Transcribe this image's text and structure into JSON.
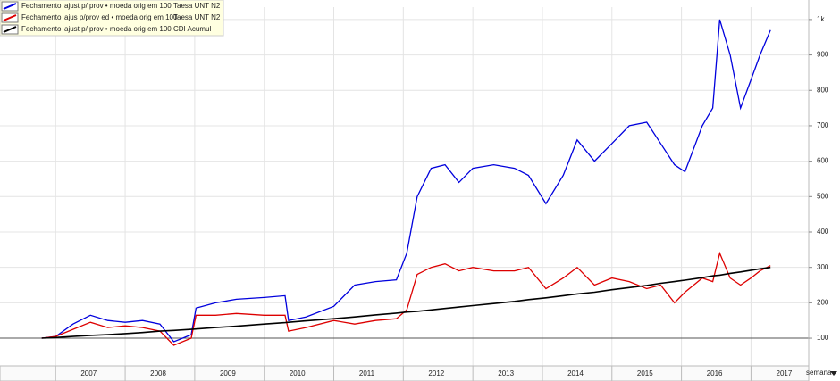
{
  "chart_data": {
    "type": "line",
    "x": [
      2006.8,
      2007.0,
      2007.25,
      2007.5,
      2007.75,
      2008.0,
      2008.25,
      2008.5,
      2008.7,
      2008.95,
      2009.02,
      2009.3,
      2009.6,
      2010.0,
      2010.3,
      2010.35,
      2010.6,
      2011.0,
      2011.3,
      2011.6,
      2011.9,
      2012.05,
      2012.2,
      2012.4,
      2012.6,
      2012.8,
      2013.0,
      2013.3,
      2013.6,
      2013.8,
      2014.05,
      2014.3,
      2014.5,
      2014.75,
      2015.0,
      2015.25,
      2015.5,
      2015.7,
      2015.9,
      2016.05,
      2016.3,
      2016.45,
      2016.55,
      2016.7,
      2016.85,
      2017.0,
      2017.13,
      2017.28
    ],
    "series": [
      {
        "name": "Taesa UNT N2",
        "measure": "Fechamento",
        "adjustment": "ajust p/ prov • moeda orig em 100",
        "color": "#0000dd",
        "values": [
          100,
          105,
          140,
          165,
          150,
          145,
          150,
          140,
          90,
          110,
          185,
          200,
          210,
          215,
          220,
          150,
          160,
          190,
          250,
          260,
          265,
          340,
          500,
          580,
          590,
          540,
          580,
          590,
          580,
          560,
          480,
          560,
          660,
          600,
          650,
          700,
          710,
          650,
          590,
          570,
          700,
          750,
          1000,
          900,
          750,
          830,
          900,
          970
        ]
      },
      {
        "name": "Taesa UNT N2",
        "measure": "Fechamento",
        "adjustment": "ajus p/prov ed • moeda orig em 100",
        "color": "#dd0000",
        "values": [
          100,
          105,
          125,
          145,
          130,
          135,
          130,
          120,
          80,
          100,
          165,
          165,
          170,
          165,
          165,
          120,
          130,
          150,
          140,
          150,
          155,
          180,
          280,
          300,
          310,
          290,
          300,
          290,
          290,
          300,
          240,
          270,
          300,
          250,
          270,
          260,
          240,
          250,
          200,
          230,
          270,
          260,
          340,
          270,
          250,
          270,
          290,
          305
        ]
      },
      {
        "name": "CDI Acumul",
        "measure": "Fechamento",
        "adjustment": "ajust p/ prov • moeda orig em 100",
        "color": "#000000",
        "values": [
          100,
          102,
          105,
          108,
          110,
          113,
          116,
          120,
          122,
          125,
          126,
          130,
          134,
          140,
          144,
          145,
          149,
          155,
          160,
          166,
          171,
          174,
          176,
          180,
          184,
          188,
          192,
          198,
          204,
          209,
          214,
          220,
          225,
          230,
          237,
          243,
          249,
          255,
          260,
          264,
          271,
          276,
          278,
          283,
          287,
          292,
          296,
          300
        ]
      }
    ],
    "xlim": [
      2006.2,
      2017.83
    ],
    "xticks": [
      2007,
      2008,
      2009,
      2010,
      2011,
      2012,
      2013,
      2014,
      2015,
      2016,
      2017
    ],
    "ylim": [
      22,
      1035
    ],
    "yticks": [
      100,
      200,
      300,
      400,
      500,
      600,
      700,
      800,
      900,
      {
        "value": 1000,
        "label": "1k"
      }
    ],
    "baseline": 100,
    "grid": true,
    "legend": "top-left",
    "x_interval": "semana"
  }
}
